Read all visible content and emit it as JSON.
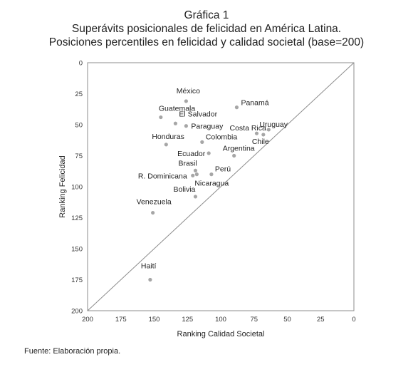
{
  "title_lines": [
    "Gráfica 1",
    "Superávits posicionales de felicidad en América Latina.",
    "Posiciones percentiles en felicidad y calidad societal (base=200)"
  ],
  "footnote": "Fuente: Elaboración propia.",
  "chart_data": {
    "type": "scatter",
    "xlabel": "Ranking Calidad Societal",
    "ylabel": "Ranking Felicidad",
    "xlim": [
      200,
      0
    ],
    "ylim": [
      200,
      0
    ],
    "x_reversed": true,
    "y_reversed": true,
    "xticks": [
      200,
      175,
      150,
      125,
      100,
      75,
      50,
      25,
      0
    ],
    "yticks": [
      0,
      25,
      50,
      75,
      100,
      125,
      150,
      175,
      200
    ],
    "diagonal_reference_line": true,
    "grid": false,
    "marker_color": "#a6a6a6",
    "points": [
      {
        "label": "México",
        "x": 126,
        "y": 31
      },
      {
        "label": "Panamá",
        "x": 88,
        "y": 36
      },
      {
        "label": "Guatemala",
        "x": 145,
        "y": 44
      },
      {
        "label": "El Salvador",
        "x": 134,
        "y": 49
      },
      {
        "label": "Paraguay",
        "x": 126,
        "y": 51
      },
      {
        "label": "Uruguay",
        "x": 64,
        "y": 54
      },
      {
        "label": "Costa Rica",
        "x": 73,
        "y": 57
      },
      {
        "label": "Chile",
        "x": 68,
        "y": 58
      },
      {
        "label": "Honduras",
        "x": 141,
        "y": 66
      },
      {
        "label": "Colombia",
        "x": 114,
        "y": 64
      },
      {
        "label": "Ecuador",
        "x": 109,
        "y": 73
      },
      {
        "label": "Argentina",
        "x": 90,
        "y": 75
      },
      {
        "label": "Brasil",
        "x": 119,
        "y": 87
      },
      {
        "label": "Perú",
        "x": 107,
        "y": 90
      },
      {
        "label": "R. Dominicana",
        "x": 121,
        "y": 91
      },
      {
        "label": "Nicaragua",
        "x": 118,
        "y": 90
      },
      {
        "label": "Bolivia",
        "x": 119,
        "y": 108
      },
      {
        "label": "Venezuela",
        "x": 151,
        "y": 121
      },
      {
        "label": "Haití",
        "x": 153,
        "y": 175
      }
    ]
  }
}
